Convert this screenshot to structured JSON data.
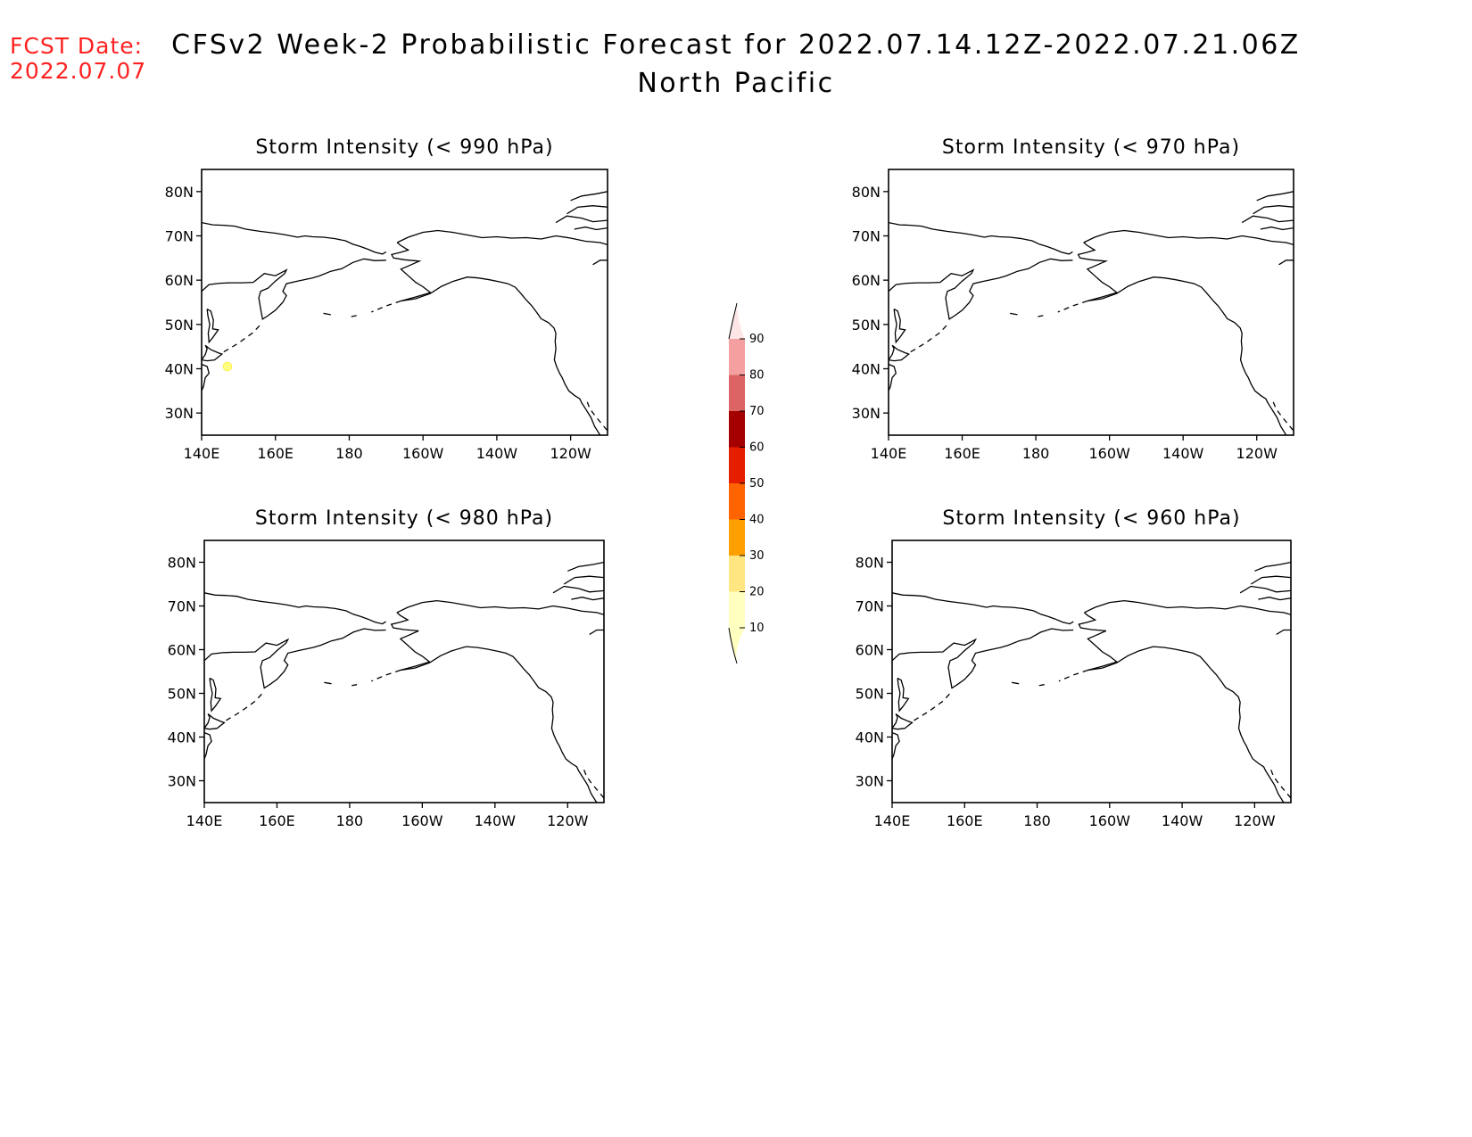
{
  "header": {
    "fcst_date_label": "FCST Date:",
    "fcst_date_value": "2022.07.07",
    "title_line1": "CFSv2 Week-2 Probabilistic Forecast for 2022.07.14.12Z-2022.07.21.06Z",
    "title_line2": "North Pacific"
  },
  "panels": [
    {
      "id": "p990",
      "title": "Storm Intensity (< 990 hPa)",
      "probability_spots": [
        {
          "lon": 147,
          "lat": 40.5,
          "value": 10,
          "color": "#ffff80"
        }
      ]
    },
    {
      "id": "p970",
      "title": "Storm Intensity (< 970 hPa)",
      "probability_spots": []
    },
    {
      "id": "p980",
      "title": "Storm Intensity (< 980 hPa)",
      "probability_spots": []
    },
    {
      "id": "p960",
      "title": "Storm Intensity (< 960 hPa)",
      "probability_spots": []
    }
  ],
  "axes": {
    "lon_ticks": [
      "140E",
      "160E",
      "180",
      "160W",
      "140W",
      "120W"
    ],
    "lat_ticks": [
      "80N",
      "70N",
      "60N",
      "50N",
      "40N",
      "30N"
    ],
    "lon_range": [
      140,
      250
    ],
    "lat_range": [
      25,
      85
    ]
  },
  "colorbar": {
    "levels": [
      10,
      20,
      30,
      40,
      50,
      60,
      70,
      80,
      90
    ],
    "colors": [
      "#ffffc0",
      "#ffe680",
      "#ffa000",
      "#ff6400",
      "#e61e00",
      "#a50000",
      "#dc6464",
      "#f5a0a0",
      "#ffe6e6"
    ]
  },
  "colors": {
    "fcst_date": "#ff2222"
  }
}
